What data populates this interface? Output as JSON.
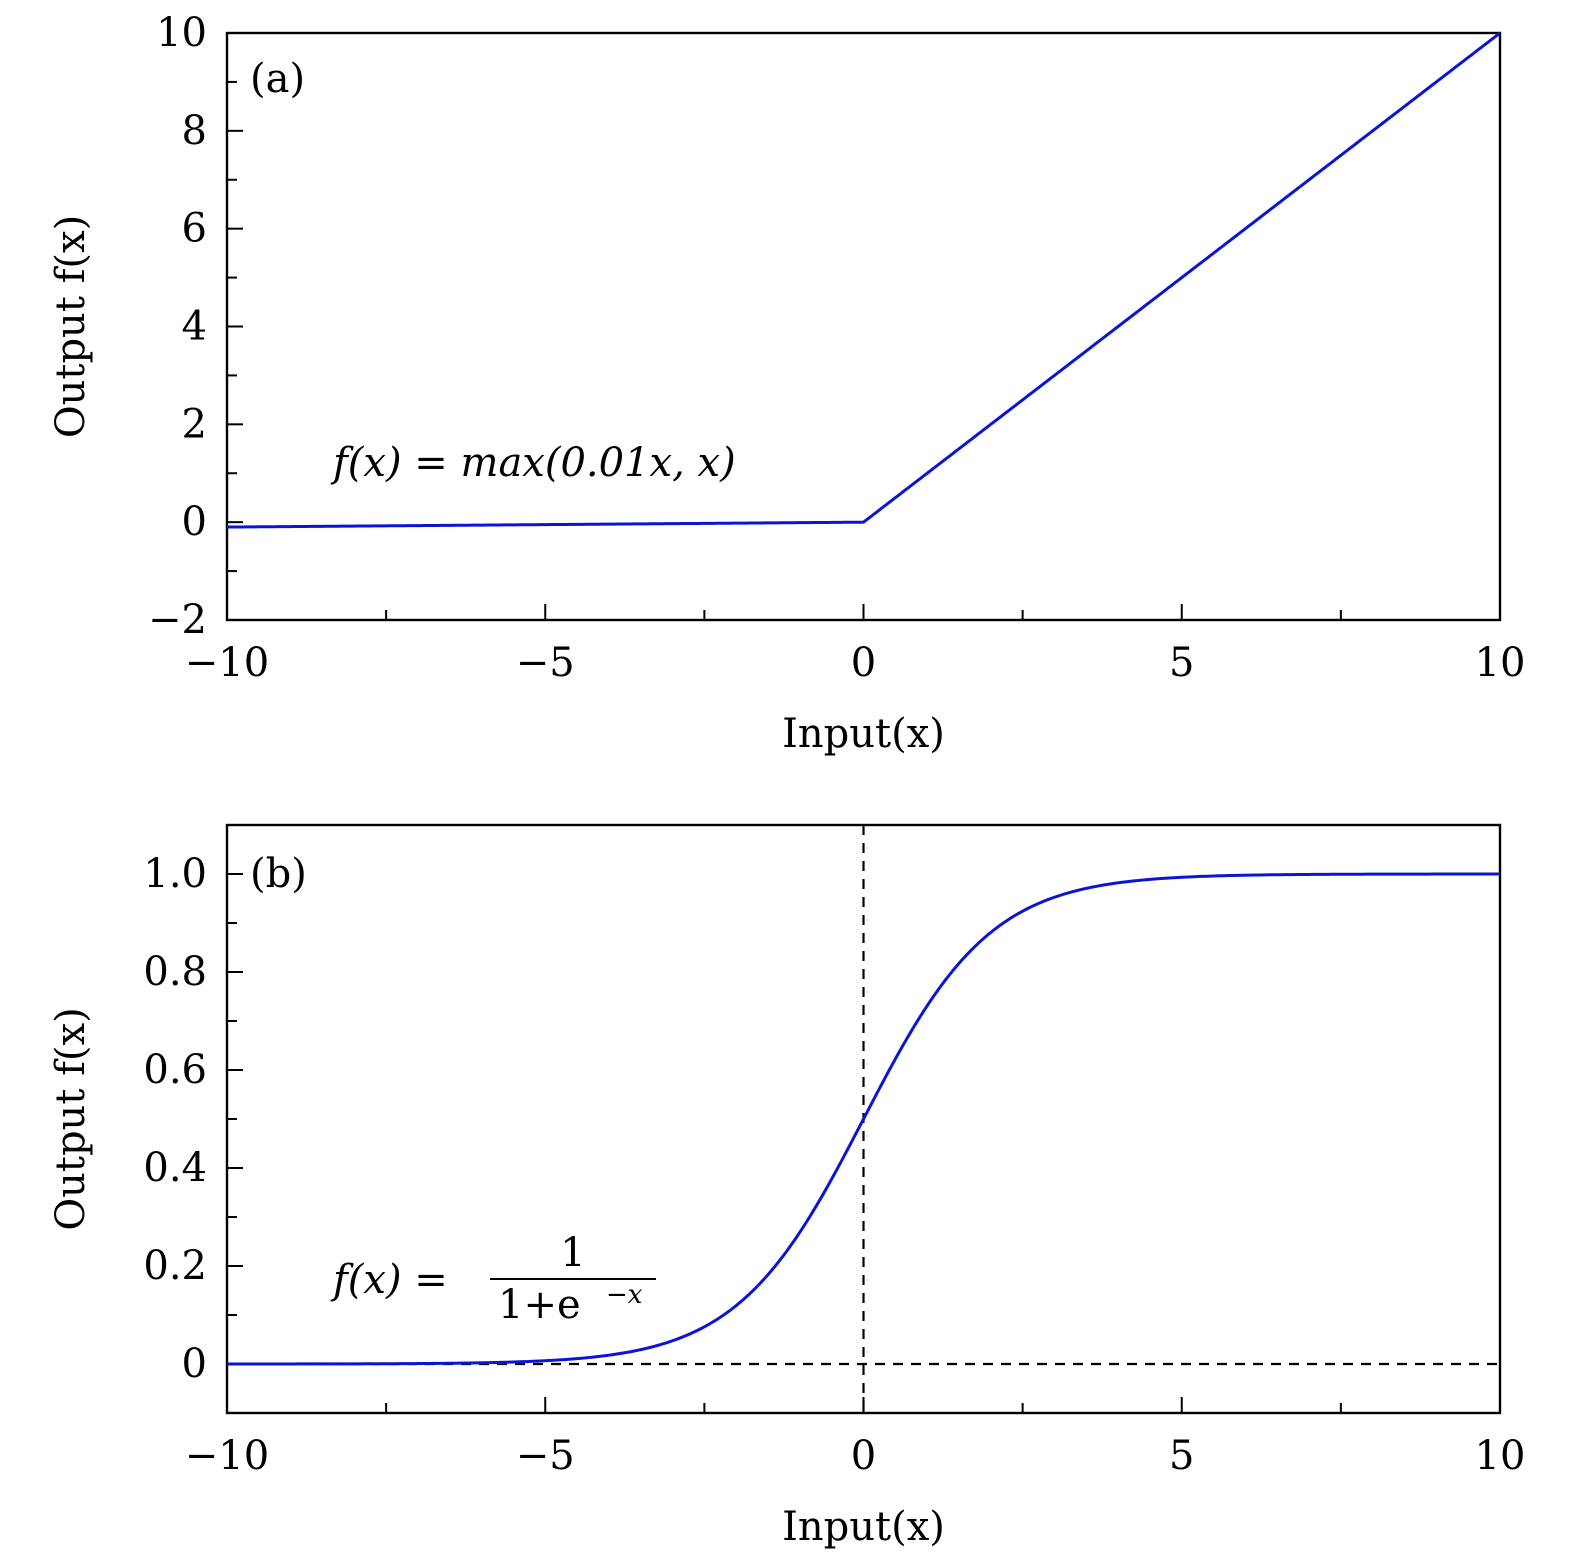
{
  "chart_data": [
    {
      "type": "line",
      "panel_label": "(a)",
      "xlabel": "Input(x)",
      "ylabel": "Output f(x)",
      "xlim": [
        -10,
        10
      ],
      "ylim": [
        -2,
        10
      ],
      "x_ticks": [
        -10,
        -5,
        0,
        5,
        10
      ],
      "x_tick_labels": [
        "−10",
        "−5",
        "0",
        "5",
        "10"
      ],
      "x_minor_step": 2.5,
      "y_ticks": [
        -2,
        0,
        2,
        4,
        6,
        8,
        10
      ],
      "y_tick_labels": [
        "−2",
        "0",
        "2",
        "4",
        "6",
        "8",
        "10"
      ],
      "y_minor_step": 1,
      "annotation": "f(x) = max(0.01x, x)",
      "grid": false,
      "series": [
        {
          "color": "#0a14d6",
          "function": "leaky_relu",
          "slope": 0.01,
          "x": [
            -10,
            0,
            10
          ],
          "y": [
            -0.1,
            0,
            10
          ]
        }
      ]
    },
    {
      "type": "line",
      "panel_label": "(b)",
      "xlabel": "Input(x)",
      "ylabel": "Output f(x)",
      "xlim": [
        -10,
        10
      ],
      "ylim": [
        -0.1,
        1.1
      ],
      "x_ticks": [
        -10,
        -5,
        0,
        5,
        10
      ],
      "x_tick_labels": [
        "−10",
        "−5",
        "0",
        "5",
        "10"
      ],
      "x_minor_step": 2.5,
      "y_ticks": [
        0,
        0.2,
        0.4,
        0.6,
        0.8,
        1.0
      ],
      "y_tick_labels": [
        "0",
        "0.2",
        "0.4",
        "0.6",
        "0.8",
        "1.0"
      ],
      "y_minor_step": 0.1,
      "annotation": {
        "lhs": "f(x) =",
        "numerator": "1",
        "denominator": "1+e",
        "exponent": "−x"
      },
      "reference_lines": {
        "vertical_x": 0,
        "horizontal_y": 0,
        "style": "dashed",
        "color": "#000000"
      },
      "grid": false,
      "series": [
        {
          "color": "#0a14d6",
          "function": "sigmoid",
          "x": [
            -10,
            -5,
            -4,
            -3,
            -2,
            -1,
            0,
            1,
            2,
            3,
            4,
            5,
            10
          ],
          "y": [
            0.0,
            0.0067,
            0.018,
            0.047,
            0.119,
            0.269,
            0.5,
            0.731,
            0.881,
            0.953,
            0.982,
            0.993,
            1.0
          ]
        }
      ]
    }
  ]
}
